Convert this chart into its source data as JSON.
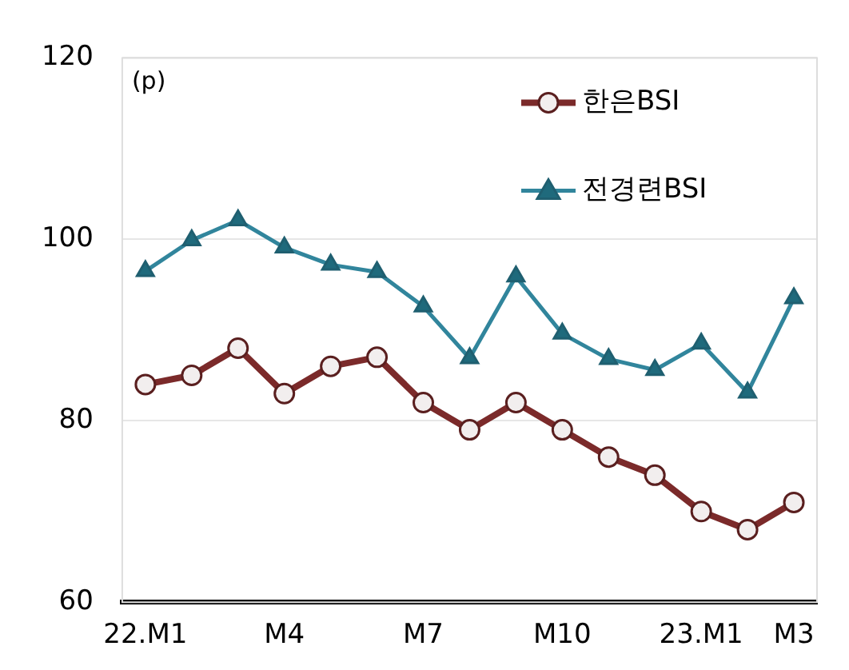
{
  "chart_data": {
    "type": "line",
    "ylabel": "(p)",
    "categories": [
      "22.M1",
      null,
      null,
      "M4",
      null,
      null,
      "M7",
      null,
      null,
      "M10",
      null,
      null,
      "23.M1",
      null,
      "M3"
    ],
    "series": [
      {
        "name": "한은BSI",
        "color": "#7b2a2a",
        "marker": "circle",
        "values": [
          84,
          85,
          88,
          83,
          86,
          87,
          82,
          79,
          82,
          79,
          76,
          74,
          70,
          68,
          71
        ]
      },
      {
        "name": "전경련BSI",
        "color": "#31859c",
        "marker": "triangle",
        "values": [
          96.5,
          99.9,
          102.1,
          99.1,
          97.2,
          96.4,
          92.6,
          86.9,
          95.9,
          89.6,
          86.8,
          85.6,
          88.5,
          83.1,
          93.5
        ]
      }
    ],
    "ylim": [
      60,
      120
    ],
    "yticks": [
      60,
      80,
      100,
      120
    ],
    "grid": "y",
    "legend": "top right"
  }
}
